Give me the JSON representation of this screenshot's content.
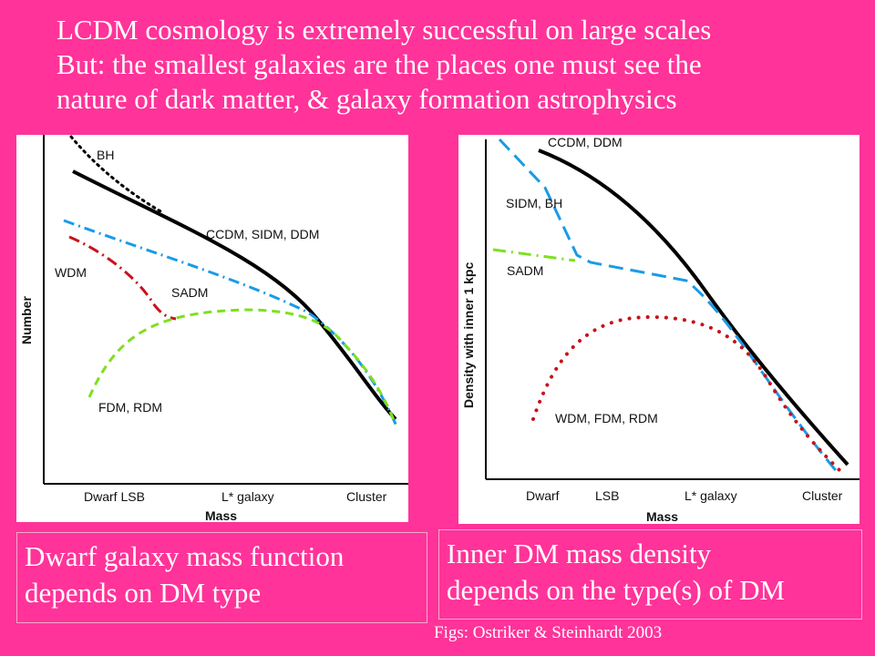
{
  "slide": {
    "title_lines": [
      "LCDM cosmology is extremely successful on large scales",
      "But: the smallest galaxies are the places one must see the",
      "nature of dark matter, & galaxy formation astrophysics"
    ],
    "captions": {
      "left": [
        "Dwarf galaxy mass function",
        "depends on DM type"
      ],
      "right": [
        "Inner DM mass density",
        "depends on the type(s) of DM"
      ]
    },
    "credit": "Figs: Ostriker & Steinhardt 2003",
    "background_color": "#ff3399"
  },
  "charts": {
    "left": {
      "ylabel": "Number",
      "xlabel": "Mass",
      "xticks": [
        "Dwarf LSB",
        "L* galaxy",
        "Cluster"
      ],
      "curve_labels": {
        "bh": "BH",
        "ccdm": "CCDM, SIDM, DDM",
        "wdm": "WDM",
        "sadm": "SADM",
        "fdm": "FDM, RDM"
      }
    },
    "right": {
      "ylabel": "Density with inner 1 kpc",
      "xlabel": "Mass",
      "xticks": [
        "Dwarf",
        "LSB",
        "L* galaxy",
        "Cluster"
      ],
      "curve_labels": {
        "ccdm": "CCDM, DDM",
        "sidm": "SIDM, BH",
        "sadm": "SADM",
        "wdm": "WDM, FDM, RDM"
      }
    }
  },
  "colors": {
    "black": "#000000",
    "blue": "#1a9be6",
    "red": "#c8121a",
    "green": "#7de01e"
  }
}
